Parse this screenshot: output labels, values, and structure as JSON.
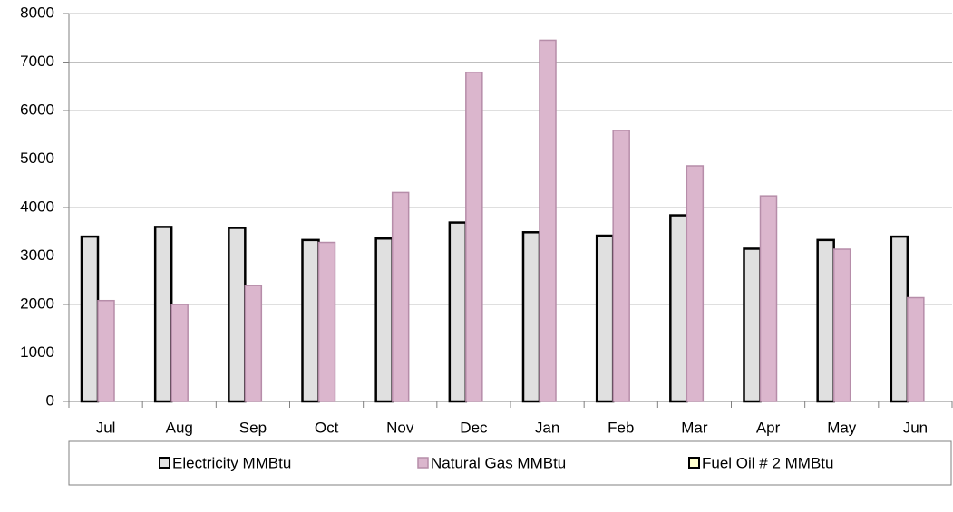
{
  "chart_data": {
    "type": "bar",
    "categories": [
      "Jul",
      "Aug",
      "Sep",
      "Oct",
      "Nov",
      "Dec",
      "Jan",
      "Feb",
      "Mar",
      "Apr",
      "May",
      "Jun"
    ],
    "series": [
      {
        "name": "Electricity MMBtu",
        "color": "#e0e0e0",
        "stroke": "#000000",
        "values": [
          3400,
          3600,
          3580,
          3330,
          3360,
          3690,
          3490,
          3420,
          3840,
          3150,
          3330,
          3400
        ]
      },
      {
        "name": "Natural Gas MMBtu",
        "color": "#dbb6cd",
        "stroke": "#b68da9",
        "values": [
          2080,
          2000,
          2390,
          3280,
          4310,
          6790,
          7450,
          5590,
          4860,
          4240,
          3140,
          2140
        ]
      },
      {
        "name": "Fuel Oil # 2 MMBtu",
        "color": "#ffffcc",
        "stroke": "#000000",
        "values": [
          0,
          0,
          0,
          0,
          0,
          0,
          0,
          0,
          0,
          0,
          0,
          0
        ]
      }
    ],
    "ylim": [
      0,
      8000
    ],
    "yticks": [
      0,
      1000,
      2000,
      3000,
      4000,
      5000,
      6000,
      7000,
      8000
    ],
    "grid": true,
    "legend": "bottom"
  }
}
